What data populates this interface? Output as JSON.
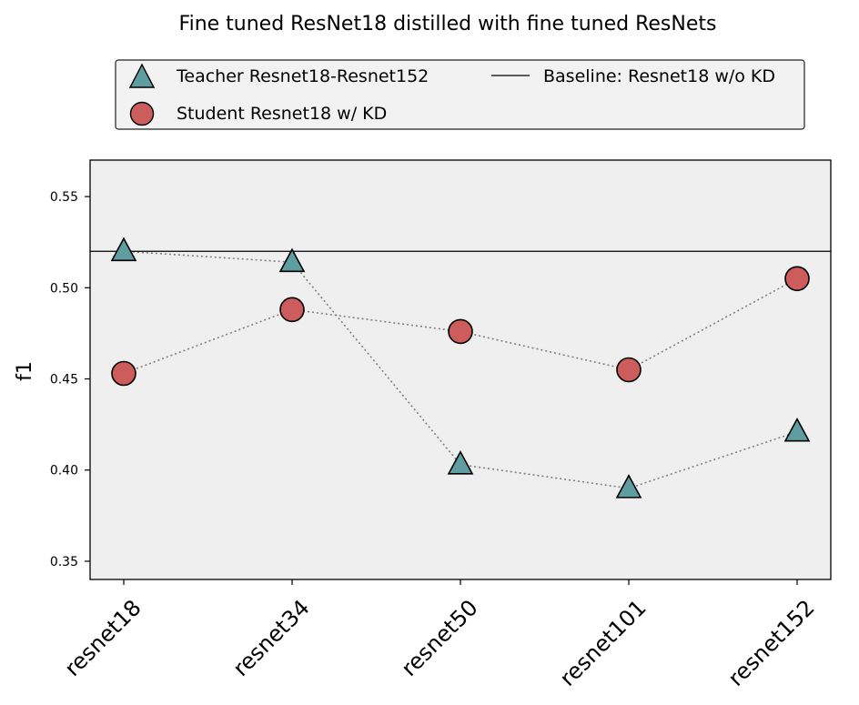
{
  "chart_data": {
    "type": "scatter",
    "title": "Fine tuned ResNet18 distilled with fine tuned ResNets",
    "xlabel": "",
    "ylabel": "f1",
    "categories": [
      "resnet18",
      "resnet34",
      "resnet50",
      "resnet101",
      "resnet152"
    ],
    "ylim": [
      0.34,
      0.57
    ],
    "yticks": [
      "0.35",
      "0.40",
      "0.45",
      "0.50",
      "0.55"
    ],
    "ytick_values": [
      0.35,
      0.4,
      0.45,
      0.5,
      0.55
    ],
    "grid": false,
    "legend_position": "top, above plot",
    "series": [
      {
        "name": "Teacher Resnet18-Resnet152",
        "marker": "triangle",
        "color": "#5f9ea0",
        "values": [
          0.52,
          0.514,
          0.403,
          0.39,
          0.421
        ]
      },
      {
        "name": "Student Resnet18 w/ KD",
        "marker": "circle",
        "color": "#cd5c5c",
        "values": [
          0.453,
          0.488,
          0.476,
          0.455,
          0.505
        ]
      }
    ],
    "baseline": {
      "name": "Baseline: Resnet18 w/o KD",
      "value": 0.52,
      "color": "#000000"
    },
    "connector_color": "#808080",
    "plot_background": "#efefef",
    "legend_background": "#f2f2f2"
  }
}
